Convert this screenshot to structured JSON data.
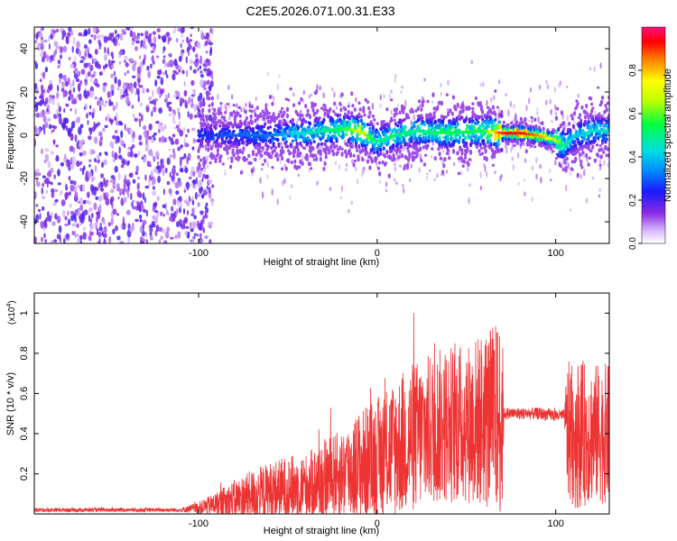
{
  "title": "C2E5.2026.071.00.31.E33",
  "chart_data": [
    {
      "type": "heatmap",
      "xlabel": "Height of straight line (km)",
      "ylabel": "Frequency (Hz)",
      "xlim": [
        -192,
        130
      ],
      "ylim": [
        -50,
        50
      ],
      "xticks": [
        -100,
        0,
        100
      ],
      "xtick_labels": [
        "-100",
        "0",
        "100"
      ],
      "yticks": [
        -40,
        -20,
        0,
        20,
        40
      ],
      "ytick_labels": [
        "-40",
        "-20",
        "0",
        "20",
        "40"
      ],
      "colorbar": {
        "label": "Normalized spectral amplitude",
        "range": [
          0,
          1
        ],
        "ticks": [
          0,
          0.2,
          0.4,
          0.6,
          0.8
        ],
        "tick_labels": [
          "0.0",
          "0.2",
          "0.4",
          "0.6",
          "0.8"
        ]
      },
      "ridge": {
        "x": [
          -100,
          -80,
          -60,
          -40,
          -20,
          -10,
          0,
          10,
          20,
          40,
          60,
          70,
          80,
          90,
          100,
          105,
          110,
          120,
          130
        ],
        "freq": [
          0,
          0,
          0,
          1,
          3,
          2,
          -3,
          0,
          2,
          1,
          2,
          1,
          1,
          0,
          -2,
          -5,
          -1,
          2,
          2
        ],
        "amplitude": [
          0.25,
          0.3,
          0.32,
          0.45,
          0.55,
          0.7,
          0.5,
          0.5,
          0.5,
          0.55,
          0.55,
          0.95,
          0.95,
          0.85,
          0.7,
          0.5,
          0.4,
          0.45,
          0.45
        ]
      }
    },
    {
      "type": "line",
      "xlabel": "Height of straight line (km)",
      "ylabel": "SNR (10 * v/v)",
      "ymultiplier": "(x10",
      "ymultiplier_exp": "4",
      "ymultiplier_close": ")",
      "xlim": [
        -192,
        130
      ],
      "ylim": [
        0,
        1.1
      ],
      "xticks": [
        -100,
        0,
        100
      ],
      "xtick_labels": [
        "-100",
        "0",
        "100"
      ],
      "yticks": [
        0.2,
        0.4,
        0.6,
        0.8,
        1
      ],
      "ytick_labels": [
        "0.2",
        "0.4",
        "0.6",
        "0.8",
        "1"
      ],
      "color": "#ee3333",
      "baseline": {
        "x": [
          -192,
          -110,
          -100,
          -90,
          -80,
          -70,
          -60,
          -50,
          -40,
          -30,
          -20,
          -10,
          0,
          10,
          20,
          30,
          40,
          50,
          60,
          70,
          71,
          80,
          90,
          100,
          105,
          106,
          110,
          120,
          130
        ],
        "snr": [
          0.02,
          0.02,
          0.03,
          0.05,
          0.07,
          0.09,
          0.11,
          0.13,
          0.14,
          0.17,
          0.2,
          0.24,
          0.28,
          0.33,
          0.38,
          0.42,
          0.45,
          0.45,
          0.47,
          0.48,
          0.5,
          0.5,
          0.5,
          0.49,
          0.49,
          0.4,
          0.4,
          0.4,
          0.4
        ]
      },
      "spread": {
        "x": [
          -192,
          -110,
          -100,
          -90,
          -80,
          -70,
          -60,
          -50,
          -40,
          -30,
          -20,
          -10,
          0,
          10,
          20,
          30,
          40,
          50,
          60,
          70,
          71,
          80,
          90,
          100,
          105,
          106,
          110,
          120,
          130
        ],
        "amp": [
          0.01,
          0.01,
          0.03,
          0.06,
          0.1,
          0.13,
          0.15,
          0.16,
          0.16,
          0.2,
          0.22,
          0.28,
          0.3,
          0.35,
          0.38,
          0.38,
          0.4,
          0.4,
          0.45,
          0.5,
          0.03,
          0.03,
          0.03,
          0.03,
          0.03,
          0.35,
          0.38,
          0.35,
          0.35
        ]
      }
    }
  ]
}
